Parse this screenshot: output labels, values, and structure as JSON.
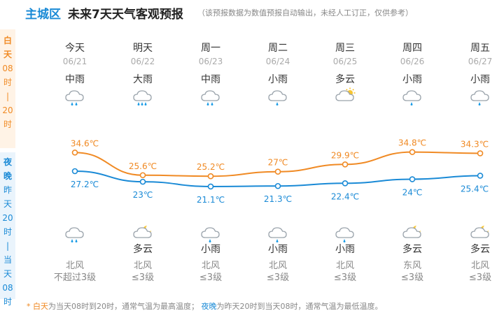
{
  "header": {
    "city": "主城区",
    "title": "未来7天天气客观预报",
    "disclaimer": "（该预报数据为数值预报自动输出，未经人工订正，仅供参考）"
  },
  "side": {
    "day": [
      "白",
      "天",
      "08",
      "时",
      "|",
      "20",
      "时"
    ],
    "night": [
      "夜",
      "晚",
      "昨",
      "天",
      "20",
      "时",
      "|",
      "当",
      "天",
      "08",
      "时"
    ]
  },
  "days": [
    {
      "name": "今天",
      "date": "06/21",
      "day_weather": "中雨",
      "day_icon": "rain-icon",
      "night_icon": "rain-icon",
      "night_weather": "",
      "wind_dir": "北风",
      "wind_level": "不超过3级"
    },
    {
      "name": "明天",
      "date": "06/22",
      "day_weather": "大雨",
      "day_icon": "heavy-rain-icon",
      "night_icon": "partly-cloudy-night-icon",
      "night_weather": "多云",
      "wind_dir": "北风",
      "wind_level": "≤3级"
    },
    {
      "name": "周一",
      "date": "06/23",
      "day_weather": "中雨",
      "day_icon": "rain-icon",
      "night_icon": "light-rain-icon",
      "night_weather": "小雨",
      "wind_dir": "北风",
      "wind_level": "≤3级"
    },
    {
      "name": "周二",
      "date": "06/24",
      "day_weather": "小雨",
      "day_icon": "light-rain-icon",
      "night_icon": "light-rain-icon",
      "night_weather": "小雨",
      "wind_dir": "北风",
      "wind_level": "≤3级"
    },
    {
      "name": "周三",
      "date": "06/25",
      "day_weather": "多云",
      "day_icon": "partly-cloudy-day-icon",
      "night_icon": "light-rain-icon",
      "night_weather": "小雨",
      "wind_dir": "北风",
      "wind_level": "≤3级"
    },
    {
      "name": "周四",
      "date": "06/26",
      "day_weather": "小雨",
      "day_icon": "light-rain-icon",
      "night_icon": "partly-cloudy-night-icon",
      "night_weather": "多云",
      "wind_dir": "东风",
      "wind_level": "≤3级"
    },
    {
      "name": "周五",
      "date": "06/27",
      "day_weather": "小雨",
      "day_icon": "light-rain-icon",
      "night_icon": "partly-cloudy-night-icon",
      "night_weather": "多云",
      "wind_dir": "北风",
      "wind_level": "≤3级"
    }
  ],
  "chart_data": {
    "type": "line",
    "series": [
      {
        "name": "白天",
        "values": [
          34.6,
          25.6,
          25.2,
          27,
          29.9,
          34.8,
          34.3
        ],
        "labels": [
          "34.6℃",
          "25.6℃",
          "25.2℃",
          "27℃",
          "29.9℃",
          "34.8℃",
          "34.3℃"
        ],
        "color": "#f08a24"
      },
      {
        "name": "夜晚",
        "values": [
          27.2,
          23,
          21.1,
          21.3,
          22.4,
          24,
          25.4
        ],
        "labels": [
          "27.2℃",
          "23℃",
          "21.1℃",
          "21.3℃",
          "22.4℃",
          "24℃",
          "25.4℃"
        ],
        "color": "#1a8ad6"
      }
    ]
  },
  "footnote": {
    "star": "* ",
    "day_term": "白天",
    "day_text": "为当天08时到20时，通常气温为最高温度；",
    "night_term": "夜晚",
    "night_text": "为昨天20时到当天08时，通常气温为最低温度。"
  },
  "colors": {
    "accent_day": "#f08a24",
    "accent_night": "#1a8ad6",
    "city": "#1a8ad6"
  }
}
